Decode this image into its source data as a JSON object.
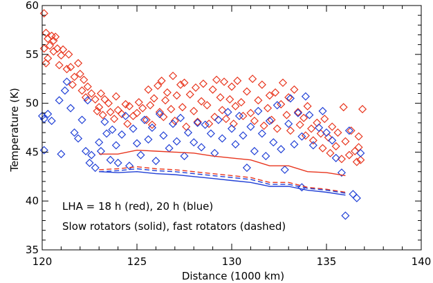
{
  "chart_data": {
    "type": "scatter",
    "title": "",
    "xlabel": "Distance (1000 km)",
    "ylabel": "Temperature (K)",
    "xlim": [
      120,
      140
    ],
    "ylim": [
      35,
      60
    ],
    "xticks": [
      120,
      125,
      130,
      135,
      140
    ],
    "xtick_labels": [
      "120",
      "125",
      "130",
      "135",
      "140"
    ],
    "yticks": [
      35,
      40,
      45,
      50,
      55,
      60
    ],
    "ytick_labels": [
      "35",
      "40",
      "45",
      "50",
      "55",
      "60"
    ],
    "x_minor_step": 1,
    "y_minor_step": 1,
    "grid": false,
    "legend": "none",
    "colors": {
      "red": "#e8341c",
      "blue": "#1f3fd6"
    },
    "annotations": [
      "LHA = 18 h (red), 20 h (blue)",
      "Slow rotators (solid), fast rotators (dashed)"
    ],
    "series": [
      {
        "key": "red-scatter",
        "kind": "scatter",
        "marker": "diamond",
        "color": "#e8341c",
        "points": [
          [
            120.1,
            59.2
          ],
          [
            120.2,
            57.2
          ],
          [
            120.3,
            56.6
          ],
          [
            120.4,
            55.9
          ],
          [
            120.1,
            55.6
          ],
          [
            120.5,
            56.9
          ],
          [
            120.6,
            56.4
          ],
          [
            120.7,
            56.8
          ],
          [
            120.3,
            54.6
          ],
          [
            120.2,
            54.1
          ],
          [
            120.6,
            55.3
          ],
          [
            120.8,
            55.6
          ],
          [
            121.0,
            54.9
          ],
          [
            121.1,
            55.5
          ],
          [
            120.9,
            53.9
          ],
          [
            121.3,
            53.5
          ],
          [
            121.4,
            55.0
          ],
          [
            121.5,
            53.7
          ],
          [
            121.7,
            52.7
          ],
          [
            121.9,
            54.1
          ],
          [
            121.6,
            51.9
          ],
          [
            122.0,
            53.0
          ],
          [
            122.2,
            52.4
          ],
          [
            122.1,
            51.3
          ],
          [
            122.4,
            51.7
          ],
          [
            122.3,
            50.6
          ],
          [
            122.6,
            51.0
          ],
          [
            122.8,
            50.4
          ],
          [
            122.9,
            49.2
          ],
          [
            123.0,
            49.6
          ],
          [
            123.1,
            51.0
          ],
          [
            123.2,
            48.8
          ],
          [
            123.3,
            50.4
          ],
          [
            123.5,
            50.0
          ],
          [
            123.6,
            49.1
          ],
          [
            123.8,
            48.4
          ],
          [
            123.9,
            50.7
          ],
          [
            124.0,
            49.3
          ],
          [
            124.2,
            48.9
          ],
          [
            124.4,
            49.9
          ],
          [
            124.6,
            49.7
          ],
          [
            124.5,
            47.9
          ],
          [
            124.8,
            48.7
          ],
          [
            125.0,
            49.0
          ],
          [
            125.1,
            50.1
          ],
          [
            125.3,
            49.5
          ],
          [
            125.5,
            48.3
          ],
          [
            125.6,
            51.4
          ],
          [
            125.7,
            49.8
          ],
          [
            125.8,
            47.8
          ],
          [
            125.9,
            50.5
          ],
          [
            126.1,
            51.8
          ],
          [
            126.2,
            49.1
          ],
          [
            126.3,
            52.3
          ],
          [
            126.4,
            48.6
          ],
          [
            126.5,
            50.3
          ],
          [
            126.6,
            51.1
          ],
          [
            126.8,
            49.4
          ],
          [
            126.9,
            52.8
          ],
          [
            127.0,
            48.2
          ],
          [
            127.1,
            50.8
          ],
          [
            127.3,
            51.9
          ],
          [
            127.4,
            49.6
          ],
          [
            127.5,
            52.1
          ],
          [
            127.6,
            47.6
          ],
          [
            127.8,
            50.9
          ],
          [
            128.0,
            49.2
          ],
          [
            128.1,
            51.6
          ],
          [
            128.2,
            48.1
          ],
          [
            128.4,
            50.2
          ],
          [
            128.5,
            52.0
          ],
          [
            128.7,
            49.8
          ],
          [
            128.8,
            47.9
          ],
          [
            129.0,
            51.4
          ],
          [
            129.1,
            48.6
          ],
          [
            129.2,
            52.4
          ],
          [
            129.4,
            50.6
          ],
          [
            129.5,
            49.3
          ],
          [
            129.6,
            52.2
          ],
          [
            129.7,
            48.4
          ],
          [
            129.9,
            50.4
          ],
          [
            130.0,
            51.7
          ],
          [
            130.1,
            47.9
          ],
          [
            130.2,
            49.7
          ],
          [
            130.3,
            52.3
          ],
          [
            130.5,
            50.1
          ],
          [
            130.6,
            48.7
          ],
          [
            130.8,
            51.2
          ],
          [
            131.0,
            49.0
          ],
          [
            131.1,
            52.5
          ],
          [
            131.2,
            48.2
          ],
          [
            131.4,
            50.3
          ],
          [
            131.6,
            51.9
          ],
          [
            131.7,
            47.7
          ],
          [
            131.9,
            49.5
          ],
          [
            132.0,
            50.8
          ],
          [
            132.1,
            48.3
          ],
          [
            132.3,
            51.1
          ],
          [
            132.4,
            47.4
          ],
          [
            132.6,
            49.9
          ],
          [
            132.7,
            52.1
          ],
          [
            132.9,
            48.8
          ],
          [
            133.0,
            50.6
          ],
          [
            133.1,
            47.2
          ],
          [
            133.3,
            51.4
          ],
          [
            133.5,
            49.1
          ],
          [
            133.6,
            47.8
          ],
          [
            133.8,
            48.5
          ],
          [
            133.9,
            46.7
          ],
          [
            134.0,
            49.7
          ],
          [
            134.2,
            47.4
          ],
          [
            134.3,
            46.2
          ],
          [
            134.5,
            48.0
          ],
          [
            134.7,
            46.9
          ],
          [
            134.8,
            45.4
          ],
          [
            134.9,
            48.4
          ],
          [
            135.1,
            46.5
          ],
          [
            135.2,
            44.9
          ],
          [
            135.3,
            47.6
          ],
          [
            135.5,
            45.6
          ],
          [
            135.6,
            47.0
          ],
          [
            135.8,
            44.3
          ],
          [
            135.9,
            49.6
          ],
          [
            136.0,
            46.1
          ],
          [
            136.2,
            44.7
          ],
          [
            136.3,
            47.2
          ],
          [
            136.5,
            45.1
          ],
          [
            136.6,
            44.0
          ],
          [
            136.7,
            46.6
          ],
          [
            136.8,
            44.2
          ],
          [
            136.9,
            49.4
          ],
          [
            136.7,
            45.5
          ]
        ]
      },
      {
        "key": "blue-scatter",
        "kind": "scatter",
        "marker": "diamond",
        "color": "#1f3fd6",
        "points": [
          [
            120.0,
            48.7
          ],
          [
            120.1,
            48.4
          ],
          [
            120.3,
            48.9
          ],
          [
            120.1,
            45.2
          ],
          [
            120.5,
            48.2
          ],
          [
            120.9,
            50.3
          ],
          [
            121.0,
            44.8
          ],
          [
            121.2,
            51.3
          ],
          [
            121.3,
            52.2
          ],
          [
            121.5,
            49.5
          ],
          [
            121.7,
            47.0
          ],
          [
            121.9,
            46.4
          ],
          [
            122.1,
            48.3
          ],
          [
            122.3,
            45.1
          ],
          [
            122.4,
            50.3
          ],
          [
            122.5,
            43.9
          ],
          [
            122.6,
            44.7
          ],
          [
            122.8,
            43.4
          ],
          [
            123.0,
            46.0
          ],
          [
            123.1,
            45.1
          ],
          [
            123.3,
            48.1
          ],
          [
            123.4,
            46.9
          ],
          [
            123.6,
            44.2
          ],
          [
            123.7,
            47.3
          ],
          [
            123.9,
            45.7
          ],
          [
            124.0,
            43.9
          ],
          [
            124.2,
            46.8
          ],
          [
            124.4,
            48.7
          ],
          [
            124.6,
            43.6
          ],
          [
            124.8,
            47.4
          ],
          [
            125.0,
            45.9
          ],
          [
            125.2,
            44.7
          ],
          [
            125.4,
            48.3
          ],
          [
            125.6,
            46.3
          ],
          [
            125.8,
            47.5
          ],
          [
            126.0,
            44.1
          ],
          [
            126.2,
            48.9
          ],
          [
            126.4,
            46.7
          ],
          [
            126.7,
            45.4
          ],
          [
            126.9,
            47.9
          ],
          [
            127.1,
            46.1
          ],
          [
            127.3,
            48.5
          ],
          [
            127.5,
            44.6
          ],
          [
            127.7,
            47.0
          ],
          [
            128.0,
            46.0
          ],
          [
            128.2,
            48.0
          ],
          [
            128.4,
            45.5
          ],
          [
            128.6,
            47.8
          ],
          [
            128.9,
            46.9
          ],
          [
            129.1,
            44.9
          ],
          [
            129.3,
            48.3
          ],
          [
            129.5,
            46.4
          ],
          [
            129.8,
            49.1
          ],
          [
            130.0,
            47.4
          ],
          [
            130.2,
            45.8
          ],
          [
            130.4,
            48.7
          ],
          [
            130.6,
            46.7
          ],
          [
            130.8,
            43.4
          ],
          [
            131.0,
            47.6
          ],
          [
            131.2,
            45.1
          ],
          [
            131.4,
            49.2
          ],
          [
            131.6,
            46.9
          ],
          [
            131.8,
            44.6
          ],
          [
            132.0,
            48.2
          ],
          [
            132.2,
            46.0
          ],
          [
            132.4,
            49.8
          ],
          [
            132.6,
            45.3
          ],
          [
            132.8,
            43.2
          ],
          [
            133.0,
            47.9
          ],
          [
            133.1,
            50.5
          ],
          [
            133.3,
            45.8
          ],
          [
            133.5,
            49.0
          ],
          [
            133.7,
            46.6
          ],
          [
            133.9,
            50.7
          ],
          [
            134.1,
            48.8
          ],
          [
            134.3,
            45.7
          ],
          [
            134.6,
            47.5
          ],
          [
            134.8,
            49.2
          ],
          [
            135.0,
            47.0
          ],
          [
            135.3,
            46.2
          ],
          [
            135.5,
            44.4
          ],
          [
            135.8,
            42.9
          ],
          [
            136.0,
            38.5
          ],
          [
            136.2,
            47.2
          ],
          [
            136.4,
            40.7
          ],
          [
            136.6,
            40.3
          ],
          [
            136.8,
            44.9
          ],
          [
            133.7,
            41.4
          ]
        ]
      },
      {
        "key": "red-solid",
        "kind": "line",
        "dash": "solid",
        "color": "#e8341c",
        "points": [
          [
            123.0,
            44.8
          ],
          [
            124.0,
            44.8
          ],
          [
            125.0,
            45.2
          ],
          [
            126.0,
            45.1
          ],
          [
            127.0,
            45.0
          ],
          [
            128.0,
            44.9
          ],
          [
            129.0,
            44.6
          ],
          [
            130.0,
            44.4
          ],
          [
            131.0,
            44.2
          ],
          [
            132.0,
            43.6
          ],
          [
            133.0,
            43.6
          ],
          [
            134.0,
            43.0
          ],
          [
            135.0,
            42.9
          ],
          [
            136.0,
            42.6
          ]
        ]
      },
      {
        "key": "red-dashed",
        "kind": "line",
        "dash": "dashed",
        "color": "#e8341c",
        "points": [
          [
            123.0,
            43.2
          ],
          [
            124.0,
            43.3
          ],
          [
            125.0,
            43.5
          ],
          [
            126.0,
            43.3
          ],
          [
            127.0,
            43.2
          ],
          [
            128.0,
            43.0
          ],
          [
            129.0,
            42.8
          ],
          [
            130.0,
            42.6
          ],
          [
            131.0,
            42.4
          ],
          [
            132.0,
            41.9
          ],
          [
            133.0,
            41.9
          ],
          [
            134.0,
            41.4
          ],
          [
            135.0,
            41.2
          ],
          [
            136.0,
            40.9
          ]
        ]
      },
      {
        "key": "blue-dashed",
        "kind": "line",
        "dash": "dashed",
        "color": "#1f3fd6",
        "points": [
          [
            123.0,
            43.0
          ],
          [
            124.0,
            43.1
          ],
          [
            125.0,
            43.3
          ],
          [
            126.0,
            43.1
          ],
          [
            127.0,
            43.0
          ],
          [
            128.0,
            42.8
          ],
          [
            129.0,
            42.6
          ],
          [
            130.0,
            42.4
          ],
          [
            131.0,
            42.2
          ],
          [
            132.0,
            41.7
          ],
          [
            133.0,
            41.7
          ],
          [
            134.0,
            41.3
          ],
          [
            135.0,
            41.1
          ],
          [
            136.0,
            40.8
          ]
        ]
      },
      {
        "key": "blue-solid",
        "kind": "line",
        "dash": "solid",
        "color": "#1f3fd6",
        "points": [
          [
            123.0,
            43.0
          ],
          [
            124.0,
            42.9
          ],
          [
            125.0,
            43.0
          ],
          [
            126.0,
            42.8
          ],
          [
            127.0,
            42.7
          ],
          [
            128.0,
            42.5
          ],
          [
            129.0,
            42.3
          ],
          [
            130.0,
            42.1
          ],
          [
            131.0,
            41.9
          ],
          [
            132.0,
            41.5
          ],
          [
            133.0,
            41.5
          ],
          [
            134.0,
            41.1
          ],
          [
            135.0,
            40.9
          ],
          [
            136.0,
            40.6
          ]
        ]
      }
    ]
  }
}
